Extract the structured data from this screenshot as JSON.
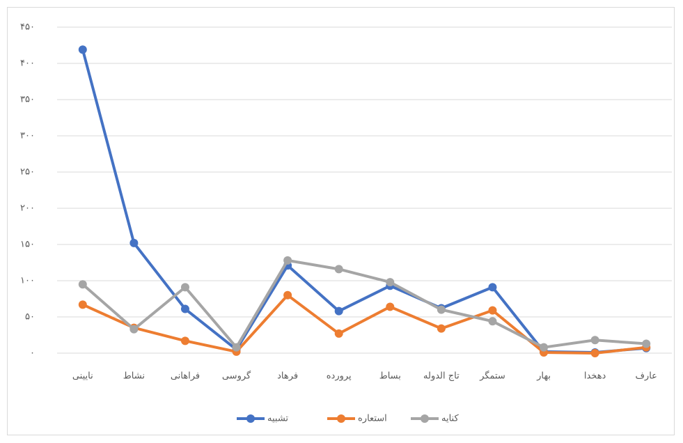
{
  "chart_data": {
    "type": "line",
    "categories": [
      "نایینی",
      "نشاط",
      "فراهانی",
      "گروسی",
      "فرهاد",
      "پرورده",
      "بساط",
      "تاج الدوله",
      "ستمگر",
      "بهار",
      "دهخدا",
      "عارف"
    ],
    "series": [
      {
        "name": "تشبیه",
        "color": "#4472c4",
        "values": [
          419,
          152,
          61,
          5,
          121,
          58,
          93,
          62,
          91,
          2,
          1,
          7
        ]
      },
      {
        "name": "استعاره",
        "color": "#ed7d31",
        "values": [
          67,
          35,
          17,
          2,
          80,
          27,
          64,
          34,
          59,
          1,
          0,
          8
        ]
      },
      {
        "name": "کنایه",
        "color": "#a5a5a5",
        "values": [
          95,
          33,
          91,
          8,
          128,
          116,
          98,
          60,
          44,
          8,
          18,
          13
        ]
      }
    ],
    "ylim": [
      0,
      450
    ],
    "yticks": [
      {
        "value": 0,
        "label": "۰"
      },
      {
        "value": 50,
        "label": "۵۰"
      },
      {
        "value": 100,
        "label": "۱۰۰"
      },
      {
        "value": 150,
        "label": "۱۵۰"
      },
      {
        "value": 200,
        "label": "۲۰۰"
      },
      {
        "value": 250,
        "label": "۲۵۰"
      },
      {
        "value": 300,
        "label": "۳۰۰"
      },
      {
        "value": 350,
        "label": "۳۵۰"
      },
      {
        "value": 400,
        "label": "۴۰۰"
      },
      {
        "value": 450,
        "label": "۴۵۰"
      }
    ],
    "grid": true,
    "legend": "bottom"
  }
}
